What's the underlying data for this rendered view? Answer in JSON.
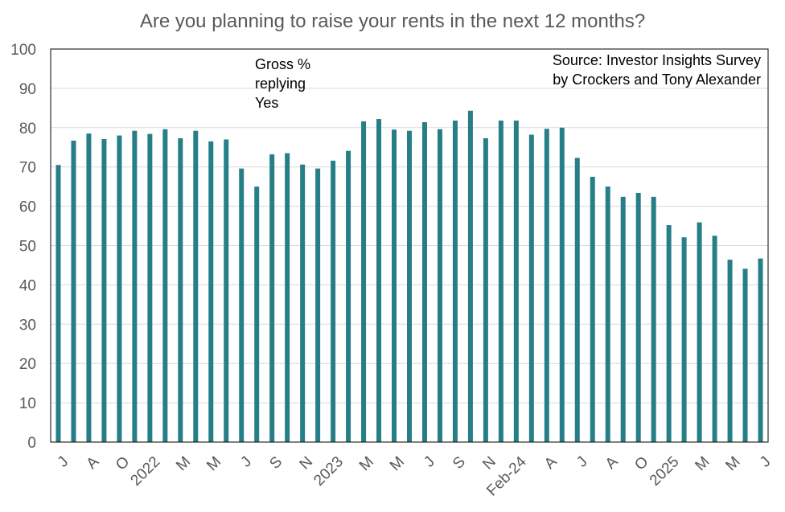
{
  "chart_data": {
    "type": "bar",
    "title": "Are you planning to raise your rents in the next 12 months?",
    "xlabel": "",
    "ylabel": "",
    "ylim": [
      0,
      100
    ],
    "yticks": [
      0,
      10,
      20,
      30,
      40,
      50,
      60,
      70,
      80,
      90,
      100
    ],
    "grid": true,
    "bar_color": "#267E87",
    "annotations": {
      "series_note": [
        "Gross %",
        "replying",
        "Yes"
      ],
      "source": [
        "Source: Investor Insights Survey",
        "by Crockers and Tony Alexander"
      ]
    },
    "tick_labels": [
      {
        "index": 0,
        "label": "J"
      },
      {
        "index": 2,
        "label": "A"
      },
      {
        "index": 4,
        "label": "O"
      },
      {
        "index": 6,
        "label": "2022"
      },
      {
        "index": 8,
        "label": "M"
      },
      {
        "index": 10,
        "label": "M"
      },
      {
        "index": 12,
        "label": "J"
      },
      {
        "index": 14,
        "label": "S"
      },
      {
        "index": 16,
        "label": "N"
      },
      {
        "index": 18,
        "label": "2023"
      },
      {
        "index": 20,
        "label": "M"
      },
      {
        "index": 22,
        "label": "M"
      },
      {
        "index": 24,
        "label": "J"
      },
      {
        "index": 26,
        "label": "S"
      },
      {
        "index": 28,
        "label": "N"
      },
      {
        "index": 30,
        "label": "Feb-24"
      },
      {
        "index": 32,
        "label": "A"
      },
      {
        "index": 34,
        "label": "J"
      },
      {
        "index": 36,
        "label": "A"
      },
      {
        "index": 38,
        "label": "O"
      },
      {
        "index": 40,
        "label": "2025"
      },
      {
        "index": 42,
        "label": "M"
      },
      {
        "index": 44,
        "label": "M"
      },
      {
        "index": 46,
        "label": "J"
      }
    ],
    "values": [
      70.5,
      76.7,
      78.5,
      77.1,
      78.0,
      79.2,
      78.4,
      79.6,
      77.3,
      79.2,
      76.5,
      77.0,
      69.6,
      65.0,
      73.2,
      73.5,
      70.6,
      69.6,
      71.6,
      74.1,
      81.6,
      82.2,
      79.5,
      79.2,
      81.4,
      79.6,
      81.8,
      84.3,
      77.3,
      81.8,
      81.8,
      78.2,
      79.7,
      80.0,
      72.3,
      67.5,
      65.0,
      62.4,
      63.4,
      62.4,
      55.2,
      52.1,
      55.9,
      52.5,
      46.4,
      44.1,
      46.7
    ]
  }
}
